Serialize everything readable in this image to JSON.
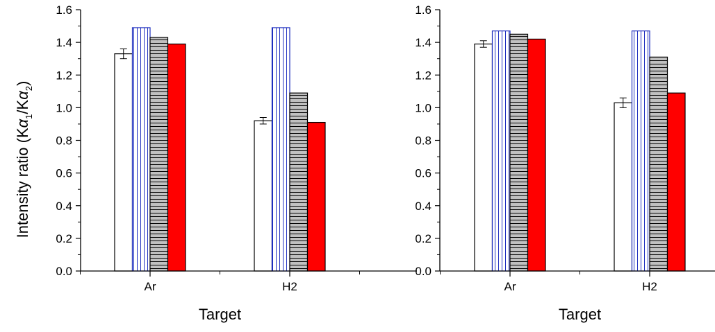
{
  "ylabel": {
    "main": "Intensity ratio (K",
    "alpha": "α",
    "sub1": "1",
    "slash": "/K",
    "sub2": "2",
    "close": ")"
  },
  "chart_data": [
    {
      "type": "bar",
      "categories": [
        "Ar",
        "H2"
      ],
      "xlabel": "Target",
      "ylim": [
        0,
        1.6
      ],
      "yticks": [
        "0.0",
        "0.2",
        "0.4",
        "0.6",
        "0.8",
        "1.0",
        "1.2",
        "1.4",
        "1.6"
      ],
      "series": [
        {
          "values": [
            1.33,
            0.92
          ],
          "errors": [
            0.03,
            0.02
          ],
          "fill": "#ffffff",
          "pattern": "none",
          "stroke": "#000000"
        },
        {
          "values": [
            1.49,
            1.49
          ],
          "fill": "#ffffff",
          "pattern": "vertical",
          "stroke": "#1f2fbf"
        },
        {
          "values": [
            1.43,
            1.09
          ],
          "fill": "#c0c0c0",
          "pattern": "horizontal",
          "stroke": "#000000"
        },
        {
          "values": [
            1.39,
            0.91
          ],
          "fill": "#ff0000",
          "pattern": "none",
          "stroke": "#000000"
        }
      ]
    },
    {
      "type": "bar",
      "categories": [
        "Ar",
        "H2"
      ],
      "xlabel": "Target",
      "ylim": [
        0,
        1.6
      ],
      "yticks": [
        "0.0",
        "0.2",
        "0.4",
        "0.6",
        "0.8",
        "1.0",
        "1.2",
        "1.4",
        "1.6"
      ],
      "series": [
        {
          "values": [
            1.39,
            1.03
          ],
          "errors": [
            0.02,
            0.03
          ],
          "fill": "#ffffff",
          "pattern": "none",
          "stroke": "#000000"
        },
        {
          "values": [
            1.47,
            1.47
          ],
          "fill": "#ffffff",
          "pattern": "vertical",
          "stroke": "#1f2fbf"
        },
        {
          "values": [
            1.45,
            1.31
          ],
          "fill": "#c0c0c0",
          "pattern": "horizontal",
          "stroke": "#000000"
        },
        {
          "values": [
            1.42,
            1.09
          ],
          "fill": "#ff0000",
          "pattern": "none",
          "stroke": "#000000"
        }
      ]
    }
  ]
}
